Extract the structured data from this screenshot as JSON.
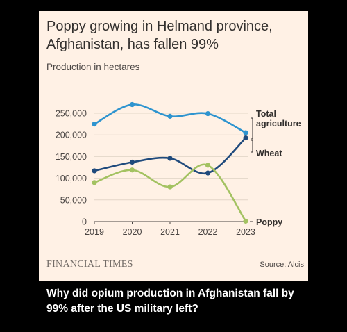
{
  "chart_data": {
    "type": "line",
    "title": "Poppy growing in Helmand province, Afghanistan, has fallen 99%",
    "subtitle": "Production in hectares",
    "categories": [
      "2019",
      "2020",
      "2021",
      "2022",
      "2023"
    ],
    "ylim": [
      0,
      250000
    ],
    "yticks": [
      0,
      50000,
      100000,
      150000,
      200000,
      250000
    ],
    "ytick_labels": [
      "0",
      "50,000",
      "100,000",
      "150,000",
      "200,000",
      "250,000"
    ],
    "grid": true,
    "series": [
      {
        "name": "Total agriculture",
        "color": "#2e94cf",
        "values": [
          225000,
          270000,
          243000,
          249000,
          205000
        ]
      },
      {
        "name": "Wheat",
        "color": "#1f4a7c",
        "values": [
          117000,
          137000,
          146000,
          112000,
          193000
        ]
      },
      {
        "name": "Poppy",
        "color": "#a3c261",
        "values": [
          90000,
          119000,
          80000,
          130000,
          1000
        ]
      }
    ],
    "labels": {
      "total_line1": "Total",
      "total_line2": "agriculture",
      "wheat": "Wheat",
      "poppy": "Poppy"
    }
  },
  "branding": {
    "publisher": "FINANCIAL TIMES"
  },
  "source": "Source: Alcis",
  "caption": "Why did opium production in Afghanistan fall by 99% after the US military left?"
}
